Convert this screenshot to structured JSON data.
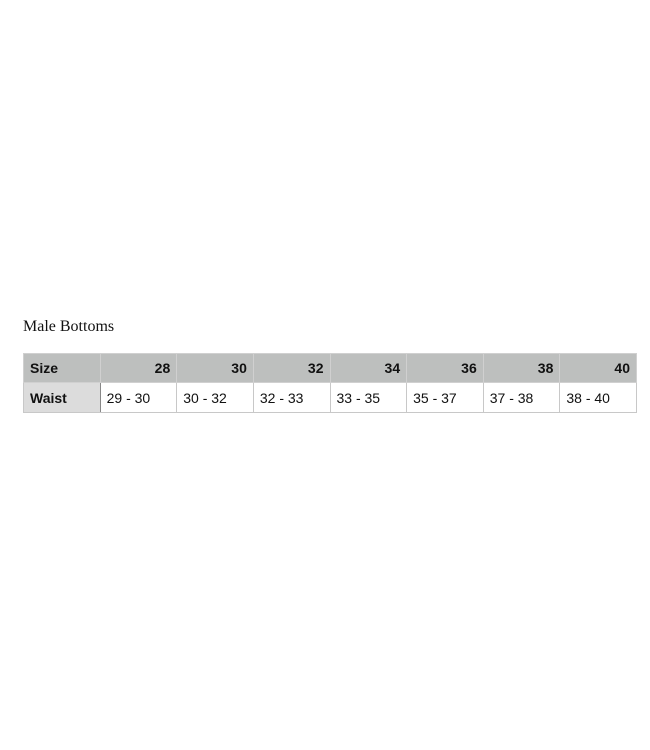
{
  "title": "Male Bottoms",
  "table": {
    "row_header_label": "Size",
    "sizes": [
      "28",
      "30",
      "32",
      "34",
      "36",
      "38",
      "40"
    ],
    "rows": [
      {
        "label": "Waist",
        "values": [
          "29 - 30",
          "30 - 32",
          "32 - 33",
          "33 - 35",
          "35 - 37",
          "37 - 38",
          "38 - 40"
        ]
      }
    ]
  }
}
